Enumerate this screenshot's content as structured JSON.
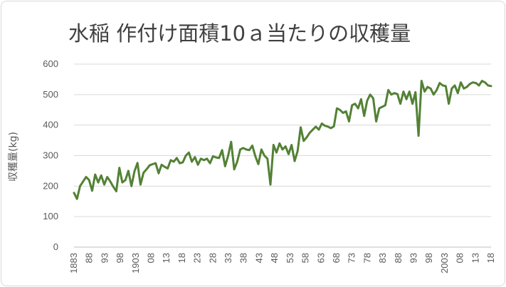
{
  "chart_data": {
    "type": "line",
    "title": "水稲 作付け面積10ａ当たりの収穫量",
    "xlabel": "",
    "ylabel": "収穫量(kg)",
    "ylim": [
      0,
      600
    ],
    "yticks": [
      0,
      100,
      200,
      300,
      400,
      500,
      600
    ],
    "x_start": 1883,
    "x_end": 2018,
    "x_tick_labels": [
      "1883",
      "88",
      "93",
      "98",
      "1903",
      "08",
      "13",
      "18",
      "23",
      "28",
      "33",
      "38",
      "43",
      "48",
      "53",
      "58",
      "63",
      "68",
      "73",
      "78",
      "83",
      "88",
      "93",
      "98",
      "2003",
      "08",
      "13",
      "18"
    ],
    "grid": true,
    "line_color": "#538135",
    "series": [
      {
        "values": [
          178,
          158,
          200,
          215,
          230,
          220,
          185,
          238,
          212,
          235,
          205,
          230,
          215,
          198,
          183,
          260,
          212,
          220,
          250,
          200,
          248,
          276,
          205,
          244,
          255,
          268,
          272,
          275,
          242,
          270,
          263,
          258,
          285,
          280,
          292,
          275,
          278,
          300,
          310,
          280,
          295,
          270,
          290,
          285,
          290,
          275,
          298,
          294,
          292,
          318,
          265,
          300,
          345,
          255,
          280,
          320,
          325,
          320,
          318,
          333,
          298,
          272,
          320,
          300,
          290,
          205,
          335,
          310,
          340,
          320,
          330,
          305,
          335,
          282,
          315,
          393,
          348,
          360,
          375,
          385,
          395,
          385,
          405,
          398,
          395,
          390,
          396,
          455,
          450,
          440,
          445,
          412,
          465,
          470,
          455,
          485,
          430,
          480,
          500,
          488,
          412,
          455,
          460,
          465,
          515,
          500,
          505,
          502,
          470,
          510,
          485,
          510,
          470,
          508,
          365,
          545,
          510,
          525,
          520,
          500,
          515,
          538,
          530,
          528,
          470,
          520,
          530,
          505,
          540,
          520,
          525,
          535,
          540,
          538,
          530,
          545,
          540,
          530,
          528
        ]
      }
    ]
  }
}
